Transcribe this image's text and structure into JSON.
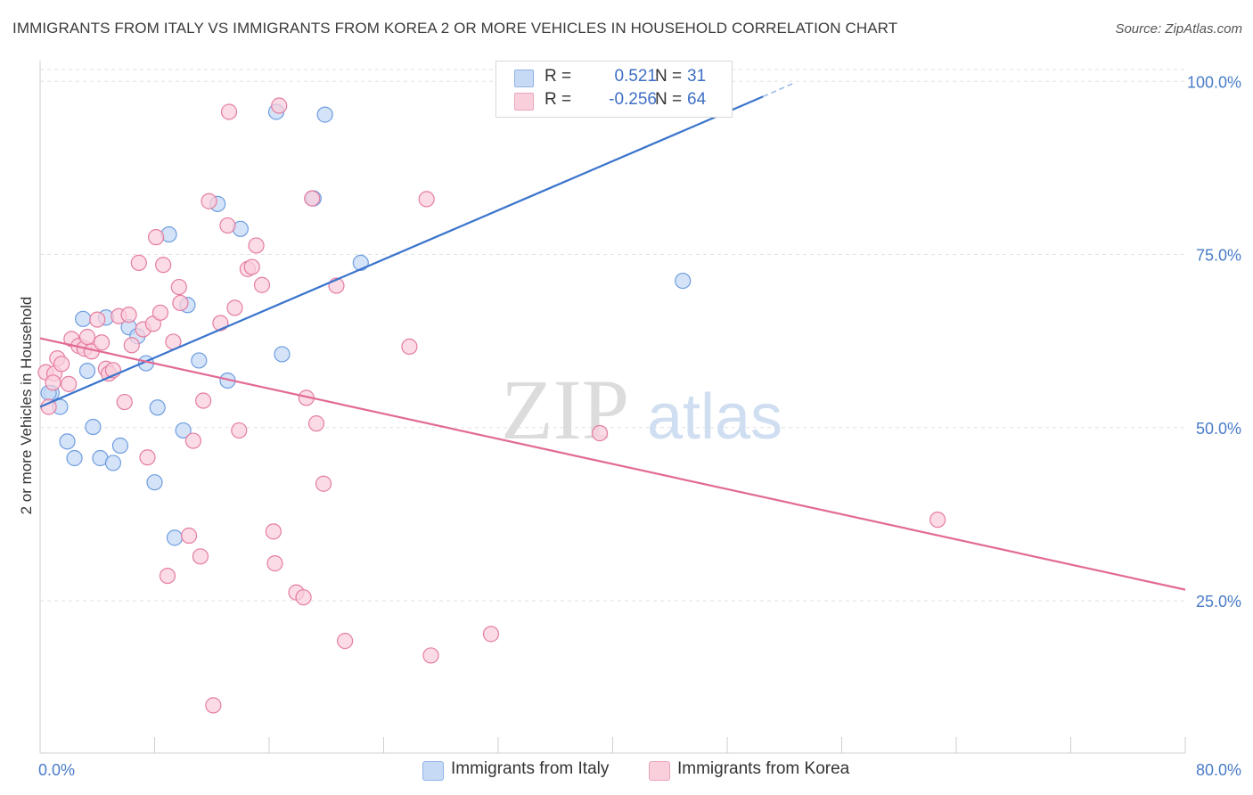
{
  "title": "IMMIGRANTS FROM ITALY VS IMMIGRANTS FROM KOREA 2 OR MORE VEHICLES IN HOUSEHOLD CORRELATION CHART",
  "source": "Source: ZipAtlas.com",
  "watermark": {
    "zip": "ZIP",
    "atlas": "atlas"
  },
  "legend": {
    "rows": [
      {
        "r_label": "R =",
        "r_value": "0.521",
        "n_label": "N =",
        "n_value": "31",
        "color": "#a9c7ef"
      },
      {
        "r_label": "R =",
        "r_value": "-0.256",
        "n_label": "N =",
        "n_value": "64",
        "color": "#f5b8cb"
      }
    ]
  },
  "bottom_legend": {
    "italy": "Immigrants from Italy",
    "korea": "Immigrants from Korea"
  },
  "chart_data": {
    "type": "scatter",
    "title": "IMMIGRANTS FROM ITALY VS IMMIGRANTS FROM KOREA 2 OR MORE VEHICLES IN HOUSEHOLD CORRELATION CHART",
    "xlabel": "",
    "ylabel": "2 or more Vehicles in Household",
    "xlim": [
      0,
      80
    ],
    "ylim": [
      3,
      103
    ],
    "x_tick_labels": [
      "0.0%",
      "80.0%"
    ],
    "y_ticks": [
      25,
      50,
      75,
      100
    ],
    "y_tick_labels": [
      "25.0%",
      "50.0%",
      "75.0%",
      "100.0%"
    ],
    "grid": true,
    "legend_position": "top-center",
    "series": [
      {
        "name": "Immigrants from Italy",
        "color": "#6e9de0",
        "fill": "#c6daf5",
        "trend": {
          "x": [
            0.0,
            50.5
          ],
          "y": [
            53.0,
            97.8
          ],
          "dashed_to": [
            52.6,
            99.7
          ]
        },
        "points": [
          [
            0.8,
            55.0
          ],
          [
            1.4,
            53.0
          ],
          [
            1.9,
            48.0
          ],
          [
            2.4,
            45.6
          ],
          [
            3.0,
            65.7
          ],
          [
            3.3,
            58.2
          ],
          [
            3.7,
            50.1
          ],
          [
            4.2,
            45.6
          ],
          [
            4.6,
            65.9
          ],
          [
            5.1,
            44.9
          ],
          [
            5.6,
            47.4
          ],
          [
            6.2,
            64.5
          ],
          [
            6.8,
            63.2
          ],
          [
            7.4,
            59.3
          ],
          [
            8.0,
            42.1
          ],
          [
            8.2,
            52.9
          ],
          [
            9.0,
            77.9
          ],
          [
            9.4,
            34.1
          ],
          [
            10.0,
            49.6
          ],
          [
            10.3,
            67.7
          ],
          [
            11.1,
            59.7
          ],
          [
            12.4,
            82.3
          ],
          [
            13.1,
            56.8
          ],
          [
            14.0,
            78.7
          ],
          [
            16.5,
            95.6
          ],
          [
            16.9,
            60.6
          ],
          [
            19.1,
            83.1
          ],
          [
            19.9,
            95.2
          ],
          [
            22.4,
            73.8
          ],
          [
            44.9,
            71.2
          ],
          [
            0.6,
            55.0
          ]
        ]
      },
      {
        "name": "Immigrants from Korea",
        "color": "#e57da0",
        "fill": "#f9cfdc",
        "trend": {
          "x": [
            0.0,
            80.0
          ],
          "y": [
            62.9,
            26.6
          ]
        },
        "points": [
          [
            0.4,
            58.0
          ],
          [
            0.6,
            53.0
          ],
          [
            1.0,
            57.8
          ],
          [
            1.2,
            60.0
          ],
          [
            1.5,
            59.2
          ],
          [
            2.0,
            56.3
          ],
          [
            2.2,
            62.8
          ],
          [
            2.7,
            61.8
          ],
          [
            3.1,
            61.4
          ],
          [
            3.3,
            63.1
          ],
          [
            3.6,
            61.0
          ],
          [
            4.0,
            65.6
          ],
          [
            4.3,
            62.3
          ],
          [
            4.6,
            58.5
          ],
          [
            4.8,
            57.8
          ],
          [
            5.1,
            58.3
          ],
          [
            5.5,
            66.1
          ],
          [
            5.9,
            53.7
          ],
          [
            6.2,
            66.3
          ],
          [
            6.4,
            61.9
          ],
          [
            6.9,
            73.8
          ],
          [
            7.2,
            64.2
          ],
          [
            7.5,
            45.7
          ],
          [
            7.9,
            65.0
          ],
          [
            8.1,
            77.5
          ],
          [
            8.4,
            66.6
          ],
          [
            8.6,
            73.5
          ],
          [
            8.9,
            28.6
          ],
          [
            9.3,
            62.4
          ],
          [
            9.7,
            70.3
          ],
          [
            9.8,
            68.0
          ],
          [
            10.4,
            34.4
          ],
          [
            10.7,
            48.1
          ],
          [
            11.2,
            31.4
          ],
          [
            11.4,
            53.9
          ],
          [
            11.8,
            82.7
          ],
          [
            12.1,
            9.9
          ],
          [
            12.6,
            65.1
          ],
          [
            13.1,
            79.2
          ],
          [
            13.6,
            67.3
          ],
          [
            13.9,
            49.6
          ],
          [
            14.5,
            72.9
          ],
          [
            14.8,
            73.2
          ],
          [
            15.1,
            76.3
          ],
          [
            15.5,
            70.6
          ],
          [
            16.3,
            35.0
          ],
          [
            16.4,
            30.4
          ],
          [
            16.7,
            96.5
          ],
          [
            17.9,
            26.2
          ],
          [
            18.4,
            25.5
          ],
          [
            18.6,
            54.3
          ],
          [
            19.0,
            83.1
          ],
          [
            19.3,
            50.6
          ],
          [
            19.8,
            41.9
          ],
          [
            20.7,
            70.5
          ],
          [
            21.3,
            19.2
          ],
          [
            25.8,
            61.7
          ],
          [
            27.0,
            83.0
          ],
          [
            27.3,
            17.1
          ],
          [
            31.5,
            20.2
          ],
          [
            39.1,
            49.2
          ],
          [
            62.7,
            36.7
          ],
          [
            0.9,
            56.5
          ],
          [
            13.2,
            95.6
          ]
        ]
      }
    ]
  }
}
